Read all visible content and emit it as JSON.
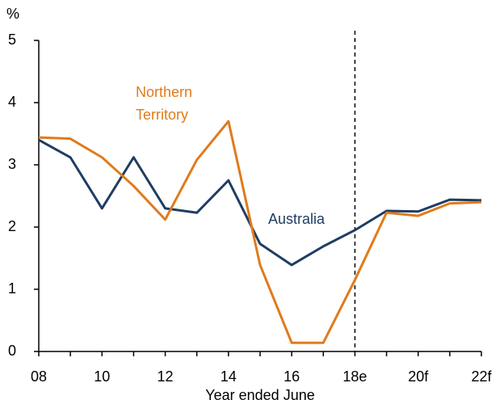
{
  "chart_data": {
    "type": "line",
    "y_axis_label": "%",
    "x_axis_label": "Year ended June",
    "categories": [
      "08",
      null,
      "10",
      null,
      "12",
      null,
      "14",
      null,
      "16",
      null,
      "18e",
      null,
      "20f",
      null,
      "22f"
    ],
    "series": [
      {
        "name": "Australia",
        "color": "#1f3d63",
        "values": [
          3.4,
          3.12,
          2.3,
          3.12,
          2.3,
          2.23,
          2.75,
          1.73,
          1.39,
          1.69,
          1.95,
          2.26,
          2.25,
          2.44,
          2.43
        ]
      },
      {
        "name": "Northern Territory",
        "color": "#e07b1c",
        "values": [
          3.44,
          3.42,
          3.12,
          2.66,
          2.12,
          3.08,
          3.7,
          1.39,
          0.14,
          0.14,
          1.15,
          2.23,
          2.18,
          2.38,
          2.4
        ]
      }
    ],
    "ylim": [
      0,
      5
    ],
    "yticks": [
      0,
      1,
      2,
      3,
      4,
      5
    ],
    "forecast_line_index": 10,
    "grid": false
  }
}
